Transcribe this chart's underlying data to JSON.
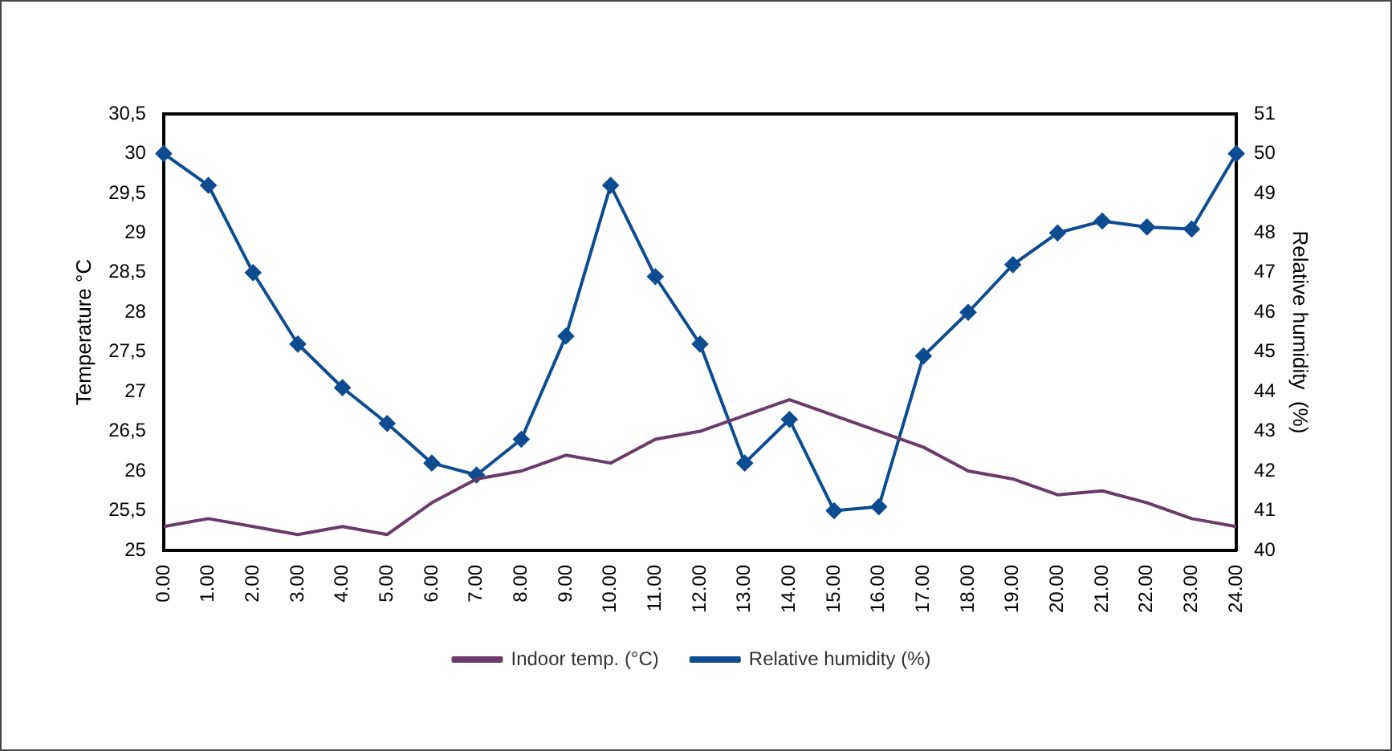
{
  "chart_data": {
    "type": "line",
    "categories": [
      "0.00",
      "1.00",
      "2.00",
      "3.00",
      "4.00",
      "5.00",
      "6.00",
      "7.00",
      "8.00",
      "9.00",
      "10.00",
      "11.00",
      "12.00",
      "13.00",
      "14.00",
      "15.00",
      "16.00",
      "17.00",
      "18.00",
      "19.00",
      "20.00",
      "21.00",
      "22.00",
      "23.00",
      "24.00"
    ],
    "series": [
      {
        "name": "Indoor temp. (°C)",
        "color": "#6b3a6b",
        "marker": "none",
        "values": [
          25.3,
          25.4,
          25.3,
          25.2,
          25.3,
          25.2,
          25.6,
          25.9,
          26.0,
          26.2,
          26.1,
          26.4,
          26.5,
          26.7,
          26.9,
          26.7,
          26.5,
          26.3,
          26.0,
          25.9,
          25.7,
          25.75,
          25.6,
          25.4,
          25.3
        ]
      },
      {
        "name": "Relative humidity (%)",
        "color": "#0e4c92",
        "marker": "diamond",
        "axis": "y2",
        "values": [
          50,
          49.2,
          47,
          45.2,
          44.1,
          43.2,
          42.2,
          41.9,
          42.8,
          45.4,
          49.2,
          46.9,
          45.2,
          42.2,
          43.3,
          41,
          41.1,
          44.9,
          46,
          47.2,
          48,
          48.3,
          48.15,
          48.1,
          50
        ]
      }
    ],
    "ylabel": "Temperature °C",
    "y2label": "Relative humidity  (%)",
    "ylim": [
      25,
      30.5
    ],
    "yticks": [
      {
        "value": 25,
        "label": "25"
      },
      {
        "value": 25.5,
        "label": "25,5"
      },
      {
        "value": 26,
        "label": "26"
      },
      {
        "value": 26.5,
        "label": "26,5"
      },
      {
        "value": 27,
        "label": "27"
      },
      {
        "value": 27.5,
        "label": "27,5"
      },
      {
        "value": 28,
        "label": "28"
      },
      {
        "value": 28.5,
        "label": "28,5"
      },
      {
        "value": 29,
        "label": "29"
      },
      {
        "value": 29.5,
        "label": "29,5"
      },
      {
        "value": 30,
        "label": "30"
      },
      {
        "value": 30.5,
        "label": "30,5"
      }
    ],
    "y2lim": [
      40,
      51
    ],
    "y2ticks": [
      40,
      41,
      42,
      43,
      44,
      45,
      46,
      47,
      48,
      49,
      50,
      51
    ],
    "grid": false,
    "legend": "bottom",
    "line_style": "solid"
  }
}
